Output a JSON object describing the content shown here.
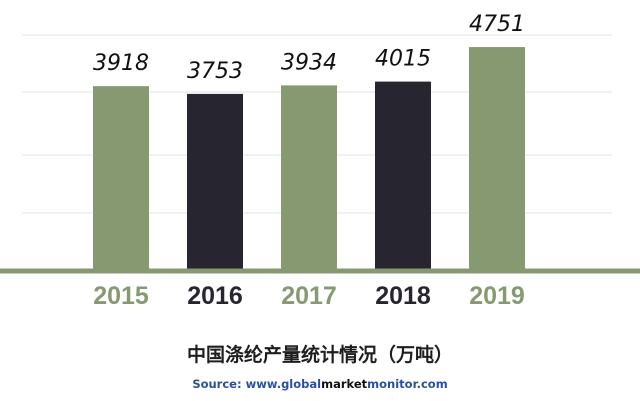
{
  "chart_data": {
    "type": "bar",
    "title": "中国涤纶产量统计情况（万吨）",
    "xlabel": "",
    "ylabel": "",
    "categories": [
      "2015",
      "2016",
      "2017",
      "2018",
      "2019"
    ],
    "values": [
      3918,
      3753,
      3934,
      4015,
      4751
    ],
    "bar_colors": [
      "#869971",
      "#262530",
      "#869971",
      "#262530",
      "#869971"
    ],
    "label_colors": [
      "#869971",
      "#262530",
      "#869971",
      "#262530",
      "#869971"
    ],
    "ylim": [
      0,
      5200
    ],
    "grid": true
  },
  "source": {
    "prefix": "Source: www.",
    "part1": "global",
    "part2": "market",
    "part3": "monitor",
    "suffix": ".com"
  },
  "colors": {
    "axis": "#869971",
    "grid": "#e3e3e3",
    "value_label": "#111111"
  }
}
